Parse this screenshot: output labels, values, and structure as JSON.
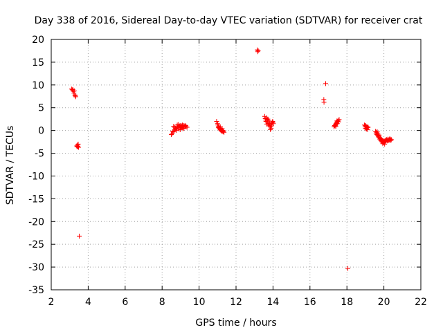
{
  "chart_data": {
    "type": "scatter",
    "title": "Day 338 of 2016, Sidereal Day-to-day VTEC variation (SDTVAR) for receiver crat",
    "xlabel": "GPS time / hours",
    "ylabel": "SDTVAR / TECUs",
    "xlim": [
      2,
      22
    ],
    "ylim": [
      -35,
      20
    ],
    "xticks": [
      2,
      4,
      6,
      8,
      10,
      12,
      14,
      16,
      18,
      20,
      22
    ],
    "yticks": [
      -35,
      -30,
      -25,
      -20,
      -15,
      -10,
      -5,
      0,
      5,
      10,
      15,
      20
    ],
    "grid": true,
    "marker": "+",
    "marker_color": "#ff0000",
    "series": [
      {
        "name": "SDTVAR",
        "points": [
          [
            3.1,
            9.1
          ],
          [
            3.14,
            8.9
          ],
          [
            3.17,
            9.0
          ],
          [
            3.2,
            8.6
          ],
          [
            3.23,
            8.2
          ],
          [
            3.25,
            8.7
          ],
          [
            3.28,
            7.8
          ],
          [
            3.3,
            7.6
          ],
          [
            3.32,
            7.4
          ],
          [
            3.38,
            -3.4
          ],
          [
            3.4,
            -3.6
          ],
          [
            3.42,
            -3.2
          ],
          [
            3.44,
            -3.5
          ],
          [
            3.46,
            -3.0
          ],
          [
            3.48,
            -3.7
          ],
          [
            3.52,
            -23.2
          ],
          [
            8.5,
            -0.9
          ],
          [
            8.55,
            -0.6
          ],
          [
            8.6,
            -0.3
          ],
          [
            8.65,
            -0.1
          ],
          [
            8.7,
            0.2
          ],
          [
            8.75,
            0.4
          ],
          [
            8.8,
            0.6
          ],
          [
            8.85,
            0.8
          ],
          [
            8.9,
            0.9
          ],
          [
            8.95,
            1.0
          ],
          [
            9.0,
            1.1
          ],
          [
            9.05,
            1.0
          ],
          [
            9.1,
            1.2
          ],
          [
            9.15,
            1.1
          ],
          [
            9.2,
            1.0
          ],
          [
            9.25,
            0.9
          ],
          [
            9.3,
            0.8
          ],
          [
            9.35,
            0.7
          ],
          [
            8.62,
            0.9
          ],
          [
            8.72,
            0.5
          ],
          [
            8.82,
            1.2
          ],
          [
            8.92,
            0.3
          ],
          [
            9.02,
            0.6
          ],
          [
            9.12,
            0.4
          ],
          [
            8.58,
            -0.2
          ],
          [
            8.68,
            0.7
          ],
          [
            8.78,
            0.0
          ],
          [
            8.88,
            1.3
          ],
          [
            8.98,
            0.2
          ],
          [
            9.08,
            0.8
          ],
          [
            9.18,
            0.5
          ],
          [
            9.28,
            1.1
          ],
          [
            10.95,
            2.0
          ],
          [
            11.0,
            1.5
          ],
          [
            11.02,
            1.2
          ],
          [
            11.05,
            0.9
          ],
          [
            11.08,
            0.7
          ],
          [
            11.1,
            0.5
          ],
          [
            11.12,
            0.3
          ],
          [
            11.15,
            0.2
          ],
          [
            11.18,
            0.0
          ],
          [
            11.2,
            -0.1
          ],
          [
            11.22,
            0.1
          ],
          [
            11.25,
            -0.2
          ],
          [
            11.28,
            0.0
          ],
          [
            11.3,
            -0.3
          ],
          [
            11.32,
            -0.1
          ],
          [
            11.35,
            -0.4
          ],
          [
            11.05,
            0.6
          ],
          [
            11.15,
            0.8
          ],
          [
            11.25,
            0.4
          ],
          [
            13.15,
            17.7
          ],
          [
            13.18,
            17.3
          ],
          [
            13.2,
            17.5
          ],
          [
            13.55,
            3.1
          ],
          [
            13.58,
            2.6
          ],
          [
            13.6,
            2.3
          ],
          [
            13.62,
            2.0
          ],
          [
            13.65,
            2.8
          ],
          [
            13.68,
            2.4
          ],
          [
            13.7,
            1.9
          ],
          [
            13.72,
            2.5
          ],
          [
            13.75,
            1.5
          ],
          [
            13.78,
            1.2
          ],
          [
            13.8,
            1.0
          ],
          [
            13.82,
            1.6
          ],
          [
            13.85,
            0.8
          ],
          [
            13.88,
            1.3
          ],
          [
            13.9,
            0.5
          ],
          [
            13.92,
            1.0
          ],
          [
            13.95,
            1.7
          ],
          [
            13.98,
            2.0
          ],
          [
            14.0,
            1.8
          ],
          [
            14.02,
            1.5
          ],
          [
            13.66,
            1.4
          ],
          [
            13.76,
            2.2
          ],
          [
            13.86,
            0.2
          ],
          [
            16.75,
            6.8
          ],
          [
            16.76,
            6.2
          ],
          [
            16.85,
            10.3
          ],
          [
            17.3,
            0.8
          ],
          [
            17.33,
            1.1
          ],
          [
            17.35,
            1.0
          ],
          [
            17.38,
            1.4
          ],
          [
            17.4,
            1.2
          ],
          [
            17.42,
            1.6
          ],
          [
            17.45,
            1.8
          ],
          [
            17.48,
            1.5
          ],
          [
            17.5,
            2.0
          ],
          [
            17.52,
            2.2
          ],
          [
            17.55,
            1.9
          ],
          [
            17.58,
            2.4
          ],
          [
            17.4,
            0.9
          ],
          [
            17.46,
            2.1
          ],
          [
            18.05,
            -30.3
          ],
          [
            18.95,
            1.2
          ],
          [
            18.98,
            0.8
          ],
          [
            19.0,
            0.5
          ],
          [
            19.02,
            1.0
          ],
          [
            19.05,
            0.3
          ],
          [
            19.08,
            0.9
          ],
          [
            19.1,
            0.6
          ],
          [
            19.12,
            0.2
          ],
          [
            19.15,
            0.7
          ],
          [
            19.0,
            1.1
          ],
          [
            19.06,
            0.4
          ],
          [
            19.55,
            -0.2
          ],
          [
            19.58,
            -0.6
          ],
          [
            19.6,
            -0.4
          ],
          [
            19.62,
            -0.9
          ],
          [
            19.65,
            -1.1
          ],
          [
            19.68,
            -0.8
          ],
          [
            19.7,
            -1.4
          ],
          [
            19.72,
            -1.2
          ],
          [
            19.75,
            -1.6
          ],
          [
            19.78,
            -1.9
          ],
          [
            19.8,
            -1.7
          ],
          [
            19.82,
            -2.1
          ],
          [
            19.85,
            -2.3
          ],
          [
            19.88,
            -2.0
          ],
          [
            19.9,
            -2.5
          ],
          [
            19.92,
            -2.2
          ],
          [
            19.95,
            -2.6
          ],
          [
            19.98,
            -2.4
          ],
          [
            20.0,
            -2.7
          ],
          [
            20.02,
            -2.3
          ],
          [
            20.05,
            -2.5
          ],
          [
            20.08,
            -2.1
          ],
          [
            20.1,
            -2.4
          ],
          [
            20.12,
            -2.2
          ],
          [
            20.15,
            -2.0
          ],
          [
            20.18,
            -2.3
          ],
          [
            20.2,
            -2.1
          ],
          [
            20.22,
            -1.9
          ],
          [
            20.25,
            -2.2
          ],
          [
            20.28,
            -2.0
          ],
          [
            20.3,
            -2.1
          ],
          [
            20.32,
            -1.8
          ],
          [
            20.35,
            -2.0
          ],
          [
            20.38,
            -2.2
          ],
          [
            20.4,
            -2.0
          ],
          [
            19.64,
            -0.3
          ],
          [
            19.74,
            -1.0
          ],
          [
            19.84,
            -1.8
          ],
          [
            19.94,
            -2.9
          ],
          [
            20.04,
            -3.0
          ]
        ]
      }
    ]
  }
}
